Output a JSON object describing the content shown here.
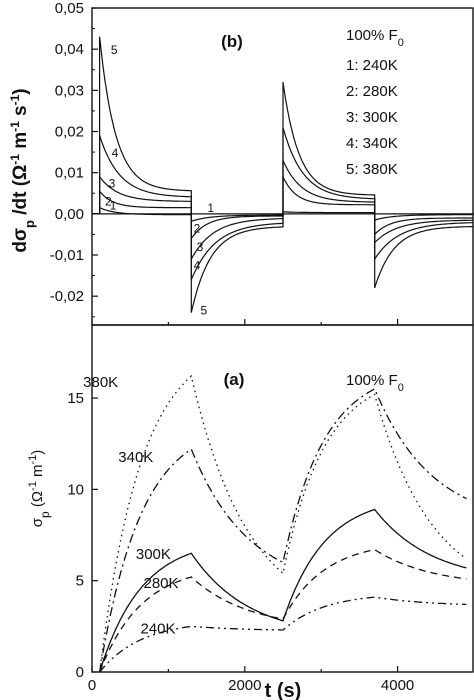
{
  "chart_data": [
    {
      "panel": "(b)",
      "type": "line",
      "ylabel": "dσp /dt (Ω⁻¹m⁻¹s⁻¹)",
      "ylim": [
        -0.027,
        0.05
      ],
      "xlim": [
        0,
        5000
      ],
      "yticks": [
        "0,05",
        "0,04",
        "0,03",
        "0,02",
        "0,01",
        "0,00",
        "-0,01",
        "-0,02"
      ],
      "legend_title": "100% F0",
      "legend": [
        "1: 240K",
        "2: 280K",
        "3: 300K",
        "4: 340K",
        "5: 380K"
      ],
      "curve_labels": [
        "1",
        "2",
        "3",
        "4",
        "5"
      ],
      "series": [
        {
          "name": "1: 240K",
          "x": [
            100,
            1300,
            2500,
            3700,
            4900
          ],
          "y": [
            0.0015,
            -0.0002,
            0.0003,
            -0.0003,
            0.0003
          ],
          "peaks": {
            "on1": 0.0015,
            "off1": -0.0018,
            "on2": 0.0005,
            "off2": -0.0015
          },
          "ends": {
            "on1": -0.0002,
            "off1": -0.0003,
            "on2": 0.0003,
            "off2": -0.0002
          }
        },
        {
          "name": "2: 280K",
          "peaks": {
            "on1": 0.0055,
            "off1": -0.006,
            "on2": 0.009,
            "off2": -0.005
          },
          "ends": {
            "on1": 0.0015,
            "off1": -0.0005,
            "on2": 0.0022,
            "off2": -0.001
          }
        },
        {
          "name": "3: 300K",
          "peaks": {
            "on1": 0.009,
            "off1": -0.011,
            "on2": 0.013,
            "off2": -0.007
          },
          "ends": {
            "on1": 0.003,
            "off1": -0.001,
            "on2": 0.0028,
            "off2": -0.0015
          }
        },
        {
          "name": "4: 340K",
          "peaks": {
            "on1": 0.019,
            "off1": -0.016,
            "on2": 0.021,
            "off2": -0.011
          },
          "ends": {
            "on1": 0.004,
            "off1": -0.002,
            "on2": 0.0035,
            "off2": -0.002
          }
        },
        {
          "name": "5: 380K",
          "peaks": {
            "on1": 0.043,
            "off1": -0.024,
            "on2": 0.032,
            "off2": -0.018
          },
          "ends": {
            "on1": 0.0055,
            "off1": -0.003,
            "on2": 0.0045,
            "off2": -0.003
          }
        }
      ]
    },
    {
      "panel": "(a)",
      "type": "line",
      "xlabel": "t (s)",
      "ylabel": "σp (Ω⁻¹m⁻¹)",
      "ylim": [
        0,
        19
      ],
      "xlim": [
        0,
        5000
      ],
      "xticks": [
        "0",
        "2000",
        "4000"
      ],
      "yticks": [
        "0",
        "5",
        "10",
        "15"
      ],
      "legend_title": "100% F0",
      "series": [
        {
          "name": "380K",
          "x": [
            100,
            1300,
            2500,
            3700,
            4900
          ],
          "y": [
            0,
            16.2,
            5.4,
            15.2,
            6.2
          ]
        },
        {
          "name": "340K",
          "x": [
            100,
            1300,
            2500,
            3700,
            4900
          ],
          "y": [
            0,
            12.2,
            6.0,
            15.5,
            9.5
          ]
        },
        {
          "name": "300K",
          "x": [
            100,
            1300,
            2500,
            3700,
            4900
          ],
          "y": [
            0,
            6.5,
            2.8,
            8.9,
            5.7
          ]
        },
        {
          "name": "280K",
          "x": [
            100,
            1300,
            2500,
            3700,
            4900
          ],
          "y": [
            0,
            5.2,
            2.9,
            6.7,
            5.1
          ]
        },
        {
          "name": "240K",
          "x": [
            100,
            1300,
            2500,
            3700,
            4900
          ],
          "y": [
            0,
            2.5,
            2.3,
            4.1,
            3.7
          ]
        }
      ]
    }
  ]
}
